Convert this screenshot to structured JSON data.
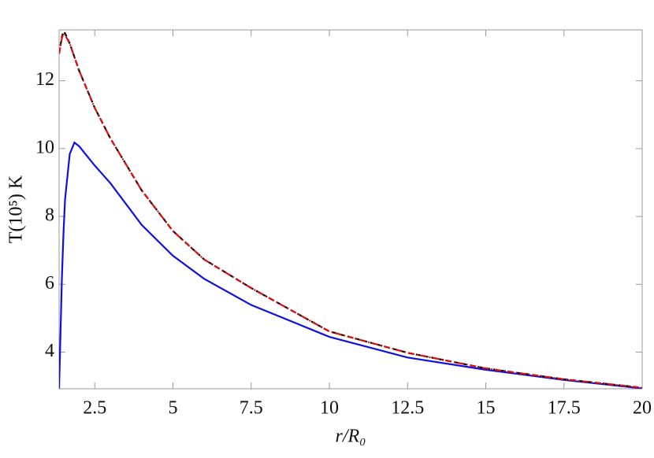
{
  "chart_data": {
    "type": "line",
    "x_label": "r/R₀",
    "y_label": "T(10⁵) K",
    "x": [
      1.36,
      1.45,
      1.5,
      1.55,
      1.7,
      1.85,
      2,
      2.5,
      3,
      4,
      5,
      6,
      7.5,
      10,
      12.5,
      15,
      17.5,
      20
    ],
    "series": [
      {
        "name": "blue",
        "color": "#1010e0",
        "dash": "none",
        "values": [
          2.93,
          6.2,
          7.5,
          8.5,
          9.84,
          10.18,
          10.07,
          9.5,
          8.98,
          7.75,
          6.84,
          6.16,
          5.39,
          4.45,
          3.84,
          3.48,
          3.18,
          2.93
        ]
      },
      {
        "name": "black",
        "color": "#000000",
        "dash": "6 4",
        "values": [
          12.8,
          13.3,
          13.45,
          13.4,
          13.1,
          12.7,
          12.3,
          11.2,
          10.3,
          8.77,
          7.57,
          6.73,
          5.89,
          4.61,
          3.98,
          3.52,
          3.2,
          2.95
        ]
      },
      {
        "name": "red",
        "color": "#dd1010",
        "dash": "8 3 2 3",
        "values": [
          12.8,
          13.25,
          13.4,
          13.35,
          13.1,
          12.7,
          12.3,
          11.2,
          10.3,
          8.77,
          7.57,
          6.73,
          5.89,
          4.61,
          3.98,
          3.52,
          3.2,
          2.95
        ]
      }
    ],
    "xlim": [
      1.36,
      20
    ],
    "ylim": [
      2.92,
      13.5
    ],
    "xticks": [
      2.5,
      5,
      7.5,
      10,
      12.5,
      15,
      17.5,
      20
    ],
    "yticks": [
      4,
      6,
      8,
      10,
      12
    ]
  }
}
